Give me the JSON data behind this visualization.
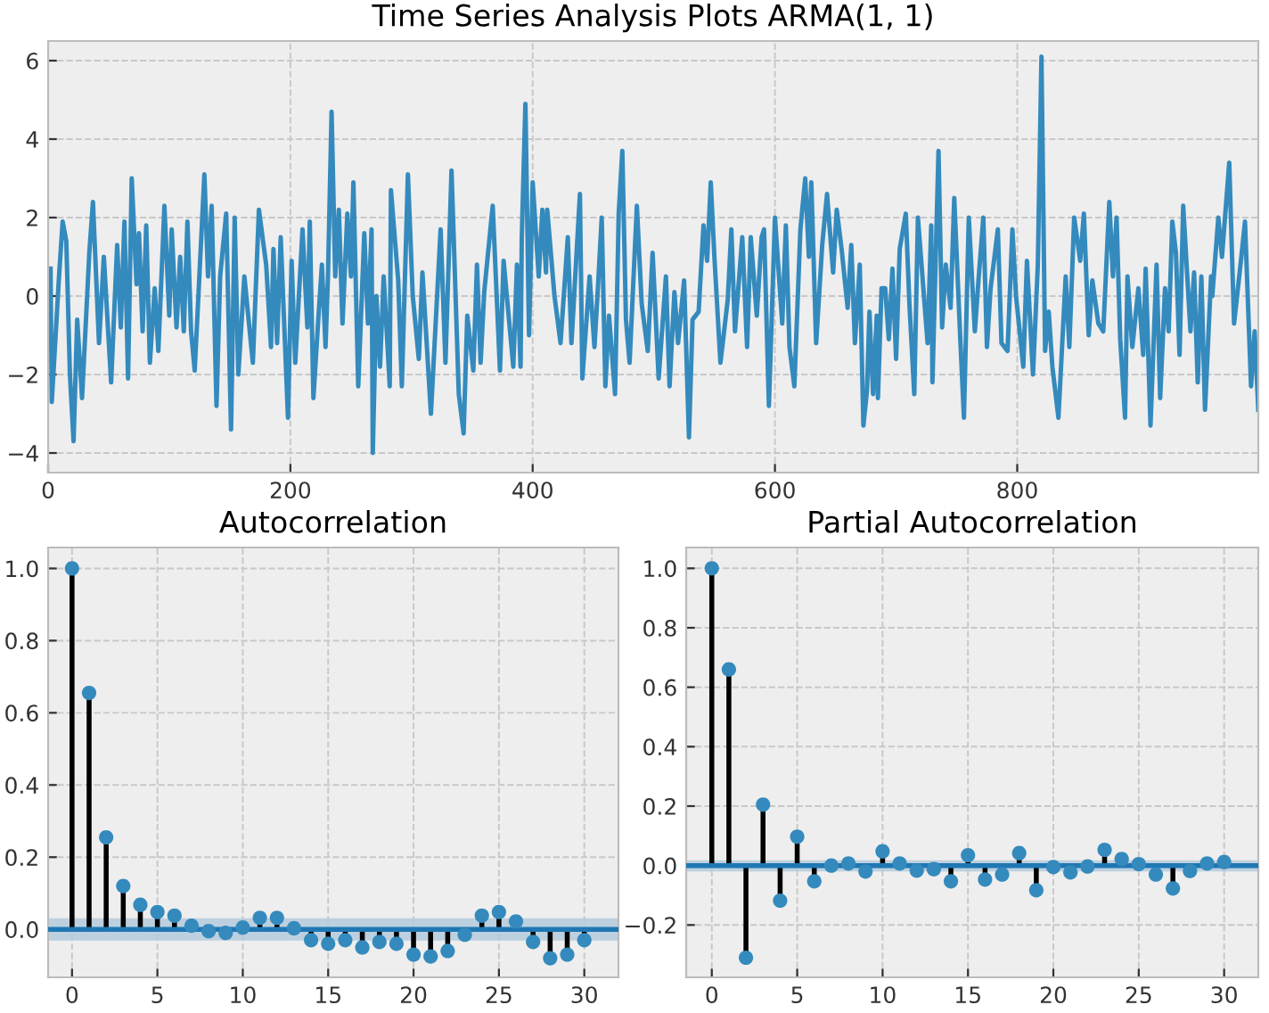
{
  "chart_data": [
    {
      "type": "line",
      "title": "Time Series Analysis Plots ARMA(1, 1)",
      "xlim": [
        0,
        999
      ],
      "ylim": [
        -4.5,
        6.5
      ],
      "xticks": [
        0,
        200,
        400,
        600,
        800
      ],
      "yticks": [
        {
          "value": -4,
          "label": "−4"
        },
        {
          "value": -2,
          "label": "−2"
        },
        0,
        2,
        4,
        6
      ],
      "grid": true,
      "line_style": "solid",
      "marker": "none",
      "x": [
        2,
        3,
        9,
        12,
        15,
        18,
        21,
        24,
        28,
        34,
        37,
        42,
        46,
        52,
        57,
        60,
        63,
        66,
        69,
        73,
        75,
        78,
        81,
        84,
        88,
        91,
        96,
        100,
        102,
        106,
        109,
        112,
        115,
        118,
        121,
        129,
        132,
        135,
        139,
        142,
        147,
        151,
        154,
        157,
        162,
        169,
        174,
        180,
        184,
        186,
        189,
        192,
        198,
        201,
        204,
        210,
        214,
        216,
        219,
        223,
        226,
        229,
        231,
        234,
        237,
        240,
        243,
        247,
        250,
        252,
        256,
        261,
        264,
        267,
        268,
        271,
        274,
        277,
        282,
        283,
        289,
        292,
        297,
        301,
        306,
        309,
        316,
        324,
        328,
        333,
        339,
        343,
        346,
        351,
        354,
        357,
        360,
        367,
        373,
        376,
        384,
        387,
        390,
        391,
        394,
        397,
        400,
        405,
        408,
        411,
        412,
        418,
        423,
        429,
        432,
        439,
        441,
        447,
        451,
        454,
        457,
        460,
        463,
        468,
        471,
        474,
        477,
        480,
        486,
        490,
        495,
        499,
        504,
        510,
        513,
        517,
        520,
        525,
        529,
        532,
        537,
        541,
        544,
        547,
        550,
        555,
        561,
        564,
        567,
        573,
        577,
        580,
        585,
        589,
        591,
        595,
        600,
        606,
        609,
        612,
        616,
        621,
        625,
        628,
        630,
        634,
        639,
        643,
        648,
        651,
        655,
        660,
        663,
        666,
        670,
        673,
        676,
        678,
        681,
        684,
        685,
        688,
        691,
        694,
        697,
        700,
        703,
        708,
        711,
        715,
        718,
        726,
        729,
        730,
        735,
        738,
        741,
        745,
        748,
        753,
        756,
        760,
        765,
        768,
        772,
        775,
        778,
        784,
        787,
        792,
        796,
        799,
        805,
        808,
        813,
        817,
        820,
        823,
        826,
        829,
        834,
        840,
        843,
        847,
        852,
        855,
        859,
        862,
        867,
        871,
        876,
        879,
        882,
        885,
        889,
        891,
        895,
        900,
        904,
        906,
        910,
        915,
        918,
        922,
        925,
        928,
        931,
        934,
        937,
        943,
        946,
        949,
        952,
        955,
        960,
        961,
        966,
        969,
        972,
        975,
        979,
        985,
        988,
        993,
        996,
        999
      ],
      "series": [
        {
          "color": "#348abd",
          "values": [
            0.7,
            -2.7,
            0.5,
            1.9,
            1.4,
            -2,
            -3.7,
            -0.6,
            -2.6,
            1.1,
            2.4,
            -1.2,
            1.0,
            -2.2,
            1.3,
            -0.8,
            1.9,
            -2.1,
            3.0,
            0.3,
            1.6,
            -0.9,
            1.8,
            -1.7,
            0.2,
            -1.4,
            2.3,
            -0.5,
            1.7,
            -0.8,
            1.0,
            -0.9,
            1.9,
            -0.9,
            -1.9,
            3.1,
            0.5,
            2.3,
            -2.8,
            0.5,
            2.1,
            -3.4,
            2.0,
            -2.0,
            0.5,
            -1.7,
            2.2,
            0.8,
            -1.3,
            1.2,
            -1.2,
            1.5,
            -3.1,
            0.9,
            -1.7,
            1.7,
            -0.8,
            1.9,
            -2.6,
            -0.6,
            0.8,
            -1.3,
            0.5,
            4.7,
            0.5,
            2.2,
            -0.7,
            2.1,
            0.5,
            2.9,
            -2.3,
            1.6,
            -0.7,
            1.7,
            -4.0,
            0.0,
            -1.8,
            0.5,
            -2.3,
            2.7,
            0.4,
            -2.3,
            3.1,
            0.0,
            -1.6,
            0.6,
            -3.0,
            1.7,
            -1.7,
            3.2,
            -2.5,
            -3.5,
            -0.5,
            -1.9,
            0.8,
            -1.7,
            0.1,
            2.3,
            -1.9,
            0.9,
            -1.8,
            0.8,
            -1.8,
            1.5,
            4.9,
            -1.0,
            2.9,
            0.5,
            2.2,
            0.6,
            2.2,
            0.0,
            -1.2,
            1.5,
            -1.2,
            2.6,
            -2.1,
            0.5,
            -1.3,
            0.3,
            2.0,
            -2.3,
            -0.5,
            -2.5,
            2.1,
            3.7,
            -0.6,
            -1.7,
            2.3,
            -0.2,
            -1.4,
            1.1,
            -2.1,
            0.5,
            -2.3,
            0.1,
            -1.2,
            0.4,
            -3.6,
            -0.6,
            -0.4,
            1.8,
            0.9,
            2.9,
            1.0,
            -1.7,
            -0.1,
            1.7,
            -0.9,
            1.5,
            -1.3,
            1.5,
            -0.5,
            1.5,
            1.7,
            -2.8,
            2.0,
            -0.7,
            1.8,
            -1.3,
            -2.3,
            1.7,
            3.0,
            1.0,
            2.9,
            -1.2,
            1.3,
            2.6,
            0.6,
            2.2,
            1.2,
            -0.3,
            1.3,
            -1.2,
            0.8,
            -3.3,
            -2.4,
            -0.4,
            -2.5,
            -0.5,
            -2.6,
            0.2,
            0.2,
            -1.1,
            0.7,
            -1.6,
            1.2,
            2.1,
            -0.2,
            -2.5,
            2.0,
            -1.2,
            1.8,
            -2.2,
            3.7,
            -0.8,
            0.8,
            -0.3,
            2.5,
            -1.1,
            -3.1,
            2.0,
            -0.9,
            0.4,
            2.0,
            -1.3,
            0.2,
            1.7,
            -1.2,
            -1.4,
            1.7,
            0.0,
            -1.8,
            0.9,
            -2.0,
            0.8,
            6.1,
            -1.4,
            -0.4,
            -1.8,
            -3.1,
            0.5,
            -1.3,
            2.0,
            0.9,
            2.1,
            -1.0,
            0.4,
            -0.7,
            -0.9,
            2.4,
            0.5,
            2.0,
            -1.1,
            -3.1,
            0.5,
            -1.3,
            0.2,
            -1.5,
            0.7,
            -3.3,
            0.8,
            -2.6,
            0.2,
            -0.9,
            1.9,
            1.1,
            -1.5,
            2.3,
            -0.9,
            0.6,
            -2.2,
            0.5,
            -2.9,
            0.5,
            0.0,
            2.0,
            1.0,
            2.2,
            3.4,
            -0.7,
            1.0,
            1.9,
            -2.3,
            -0.9,
            -2.9
          ]
        }
      ]
    },
    {
      "type": "lollipop",
      "title": "Autocorrelation",
      "xlim": [
        -1.4,
        32
      ],
      "ylim": [
        -0.133,
        1.058
      ],
      "xticks": [
        0,
        5,
        10,
        15,
        20,
        25,
        30
      ],
      "yticks": [
        {
          "value": 0,
          "label": "0.0"
        },
        {
          "value": 0.2,
          "label": "0.2"
        },
        {
          "value": 0.4,
          "label": "0.4"
        },
        {
          "value": 0.6,
          "label": "0.6"
        },
        {
          "value": 0.8,
          "label": "0.8"
        },
        {
          "value": 1.0,
          "label": "1.0"
        }
      ],
      "grid": true,
      "marker": "circle",
      "x": [
        0,
        1,
        2,
        3,
        4,
        5,
        6,
        7,
        8,
        9,
        10,
        11,
        12,
        13,
        14,
        15,
        16,
        17,
        18,
        19,
        20,
        21,
        22,
        23,
        24,
        25,
        26,
        27,
        28,
        29,
        30
      ],
      "series": [
        {
          "color": "#348abd",
          "values": [
            1.0,
            0.655,
            0.255,
            0.12,
            0.068,
            0.048,
            0.038,
            0.01,
            -0.005,
            -0.01,
            0.005,
            0.032,
            0.032,
            0.003,
            -0.03,
            -0.04,
            -0.03,
            -0.05,
            -0.035,
            -0.04,
            -0.07,
            -0.075,
            -0.06,
            -0.015,
            0.038,
            0.048,
            0.022,
            -0.035,
            -0.08,
            -0.07,
            -0.03
          ]
        }
      ],
      "ref_lines": [
        {
          "axis": "y",
          "value": 0,
          "color": "#1f77b4"
        }
      ],
      "bands": [
        {
          "axis": "y",
          "from": -0.031,
          "to": 0.031,
          "color": "#b0c8dc"
        }
      ]
    },
    {
      "type": "lollipop",
      "title": "Partial Autocorrelation",
      "xlim": [
        -1.5,
        32
      ],
      "ylim": [
        -0.376,
        1.07
      ],
      "xticks": [
        0,
        5,
        10,
        15,
        20,
        25,
        30
      ],
      "yticks": [
        {
          "value": -0.2,
          "label": "−0.2"
        },
        {
          "value": 0,
          "label": "0.0"
        },
        {
          "value": 0.2,
          "label": "0.2"
        },
        {
          "value": 0.4,
          "label": "0.4"
        },
        {
          "value": 0.6,
          "label": "0.6"
        },
        {
          "value": 0.8,
          "label": "0.8"
        },
        {
          "value": 1.0,
          "label": "1.0"
        }
      ],
      "grid": true,
      "marker": "circle",
      "x": [
        0,
        1,
        2,
        3,
        4,
        5,
        6,
        7,
        8,
        9,
        10,
        11,
        12,
        13,
        14,
        15,
        16,
        17,
        18,
        19,
        20,
        21,
        22,
        23,
        24,
        25,
        26,
        27,
        28,
        29,
        30
      ],
      "series": [
        {
          "color": "#348abd",
          "values": [
            1.0,
            0.66,
            -0.31,
            0.205,
            -0.118,
            0.097,
            -0.053,
            0.0,
            0.007,
            -0.02,
            0.048,
            0.007,
            -0.017,
            -0.012,
            -0.053,
            0.035,
            -0.047,
            -0.03,
            0.042,
            -0.083,
            -0.005,
            -0.023,
            -0.003,
            0.053,
            0.022,
            0.005,
            -0.03,
            -0.077,
            -0.018,
            0.007,
            0.012
          ]
        }
      ],
      "ref_lines": [
        {
          "axis": "y",
          "value": 0,
          "color": "#1f77b4"
        }
      ],
      "bands": [
        {
          "axis": "y",
          "from": -0.02,
          "to": 0.018,
          "color": "#b0c8dc"
        }
      ]
    }
  ]
}
